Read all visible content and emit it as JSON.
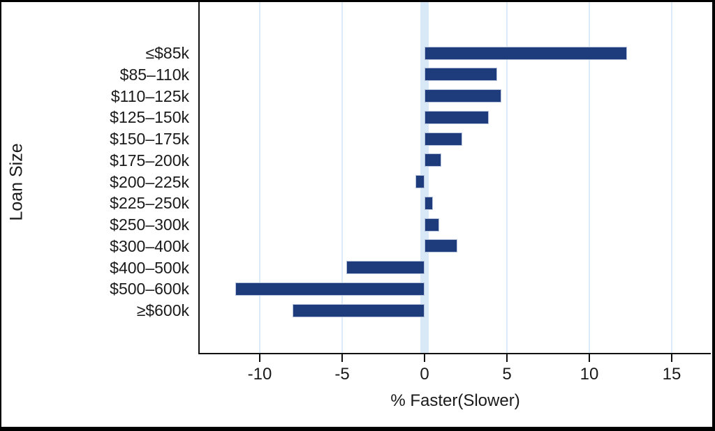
{
  "figure": {
    "y_axis_title": "Loan Size",
    "x_axis_title": "% Faster(Slower)"
  },
  "chart_data": {
    "type": "bar",
    "orientation": "horizontal",
    "title": "",
    "xlabel": "% Faster(Slower)",
    "ylabel": "Loan Size",
    "categories": [
      "≤$85k",
      "$85–110k",
      "$110–125k",
      "$125–150k",
      "$150–175k",
      "$175–200k",
      "$200–225k",
      "$225–250k",
      "$250–300k",
      "$300–400k",
      "$400–500k",
      "$500–600k",
      "≥$600k"
    ],
    "values": [
      12.3,
      4.4,
      4.65,
      3.9,
      2.3,
      1.0,
      -0.55,
      0.5,
      0.9,
      2.0,
      -4.75,
      -11.5,
      -8.0
    ],
    "x_ticks": [
      -10,
      -5,
      0,
      5,
      10,
      15
    ],
    "xlim": [
      -13.7,
      17.4
    ],
    "grid": "vertical light-blue gridlines at x ticks (except 0), light-blue reference band at 0",
    "legend": "none",
    "colors": {
      "bar_fill": "#1e3c7b",
      "bar_border": "#b3c1da",
      "zero_band": "#d9e8f7",
      "gridline": "#ddebf9",
      "axis": "#111111",
      "frame": "#000000",
      "background": "#ffffff"
    }
  }
}
